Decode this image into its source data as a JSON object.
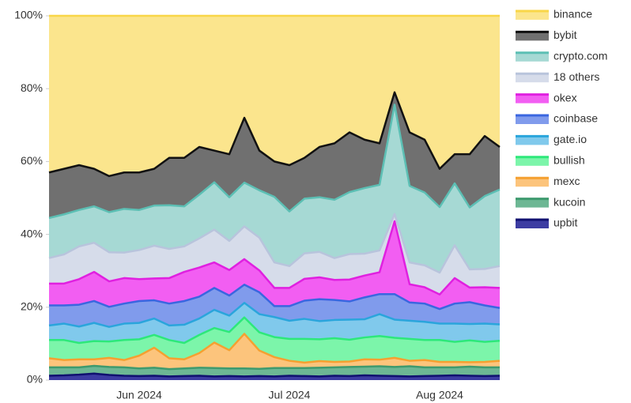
{
  "chart_data": {
    "type": "stacked_area",
    "categories": [
      null,
      null,
      null,
      null,
      null,
      null,
      "Jun 2024",
      null,
      null,
      null,
      null,
      null,
      null,
      null,
      null,
      null,
      "Jul 2024",
      null,
      null,
      null,
      null,
      null,
      null,
      null,
      null,
      null,
      "Aug 2024",
      null,
      null,
      null,
      null
    ],
    "ylim": [
      0,
      100
    ],
    "yticks": [
      {
        "value": 0,
        "label": "0%"
      },
      {
        "value": 20,
        "label": "20%"
      },
      {
        "value": 40,
        "label": "40%"
      },
      {
        "value": 60,
        "label": "60%"
      },
      {
        "value": 80,
        "label": "80%"
      },
      {
        "value": 100,
        "label": "100%"
      }
    ],
    "legend": "right",
    "series": [
      {
        "name": "binance",
        "color": "#f9d648",
        "fill": "#fbe58d",
        "values": [
          43,
          42,
          41,
          42,
          44,
          43,
          43,
          42,
          39,
          39,
          36,
          37,
          38,
          28,
          37,
          40,
          41,
          39,
          36,
          35,
          32,
          34,
          35,
          21,
          32,
          34,
          42,
          38,
          38,
          33,
          36
        ]
      },
      {
        "name": "bybit",
        "color": "#111111",
        "fill": "#707070",
        "values": [
          12.5,
          12.5,
          12.3,
          10.3,
          9.9,
          10,
          10.3,
          10.1,
          13,
          13.3,
          13.1,
          8.7,
          11.8,
          17.8,
          10.9,
          9.7,
          12.7,
          11.2,
          13.8,
          15.5,
          16.4,
          13.3,
          11.4,
          3.4,
          14.7,
          14.5,
          10.5,
          8,
          14.6,
          16.5,
          11.7
        ]
      },
      {
        "name": "crypto.com",
        "color": "#5cbfb4",
        "fill": "#a6d9d4",
        "values": [
          11,
          11,
          10,
          10,
          11,
          12,
          11,
          11,
          12,
          11,
          12,
          13,
          12,
          12,
          13,
          18,
          15,
          15,
          15,
          16,
          17,
          18,
          18,
          30,
          21,
          20,
          18,
          17,
          17,
          20,
          21
        ]
      },
      {
        "name": "18 others",
        "color": "#b8c4dc",
        "fill": "#d6dcea",
        "values": [
          7,
          8,
          9,
          8,
          8,
          7,
          8,
          9,
          8,
          7,
          8,
          9,
          8,
          9,
          9,
          7,
          6,
          7,
          7,
          6,
          7,
          6,
          6,
          2,
          6,
          6,
          6,
          9,
          5,
          5,
          6
        ]
      },
      {
        "name": "okex",
        "color": "#e020e0",
        "fill": "#f25ef2",
        "values": [
          6,
          6,
          7,
          8,
          7,
          7,
          6,
          6,
          7,
          8,
          8,
          7,
          7,
          7,
          6,
          5,
          5,
          6,
          6,
          5.5,
          6,
          6,
          6,
          20,
          5,
          4.5,
          4,
          7,
          4,
          5,
          5.5
        ]
      },
      {
        "name": "coinbase",
        "color": "#3a66e0",
        "fill": "#809bec",
        "values": [
          5.5,
          5,
          6,
          6,
          5.5,
          5.5,
          6,
          5,
          6,
          6.5,
          6,
          6,
          5.5,
          5,
          6,
          3,
          4,
          5,
          6,
          5.5,
          5,
          6,
          5.5,
          7,
          5,
          5,
          4,
          5.5,
          6,
          5,
          4.5
        ]
      },
      {
        "name": "gate.io",
        "color": "#2aa5dc",
        "fill": "#80c9ec",
        "values": [
          4,
          4.5,
          4.5,
          5,
          4,
          4.5,
          4.5,
          4.5,
          4,
          5,
          4.5,
          5,
          4.5,
          4,
          5,
          5.5,
          5,
          5.5,
          5,
          5,
          5.5,
          5,
          6,
          5,
          5,
          5,
          4.5,
          5,
          4.5,
          5,
          4.5
        ]
      },
      {
        "name": "bullish",
        "color": "#2de87a",
        "fill": "#7cf5aa",
        "values": [
          5,
          5.5,
          4.5,
          5,
          4.5,
          5.5,
          4.5,
          3.5,
          5,
          4.5,
          5,
          4,
          5,
          4.5,
          5,
          5.5,
          6,
          6.5,
          6,
          6.5,
          6,
          6,
          6.5,
          5.5,
          6,
          5.5,
          6,
          5.5,
          6,
          5.5,
          5.5
        ]
      },
      {
        "name": "mexc",
        "color": "#f5a030",
        "fill": "#fcc47c",
        "values": [
          2.5,
          2.0,
          2.2,
          1.8,
          2.5,
          2.0,
          3.5,
          5.5,
          3.0,
          2.5,
          4,
          7,
          5,
          9.5,
          5,
          3,
          2.0,
          1.5,
          1.8,
          1.5,
          1.5,
          2.0,
          1.8,
          2.5,
          1.5,
          2.0,
          1.5,
          1.5,
          1.2,
          1.5,
          1.8
        ]
      },
      {
        "name": "kucoin",
        "color": "#3e9a6e",
        "fill": "#6db794",
        "values": [
          2.3,
          2.2,
          2.0,
          2.1,
          2.2,
          2.3,
          2.1,
          2.2,
          2.0,
          2.1,
          2.2,
          2.3,
          2.1,
          2.2,
          2.0,
          2.3,
          2.1,
          2.2,
          2.4,
          2.3,
          2.5,
          2.4,
          2.6,
          2.5,
          2.8,
          2.4,
          2.3,
          2.2,
          2.5,
          2.4,
          2.3
        ]
      },
      {
        "name": "upbit",
        "color": "#101070",
        "fill": "#3c3ca2",
        "values": [
          1.2,
          1.3,
          1.5,
          1.8,
          1.4,
          1.2,
          1.1,
          1.2,
          1.0,
          1.1,
          1.2,
          1.0,
          1.1,
          1.0,
          1.1,
          1.0,
          1.2,
          1.1,
          1.0,
          1.2,
          1.1,
          1.3,
          1.2,
          1.1,
          1.0,
          1.1,
          1.2,
          1.3,
          1.2,
          1.1,
          1.2
        ]
      }
    ]
  }
}
